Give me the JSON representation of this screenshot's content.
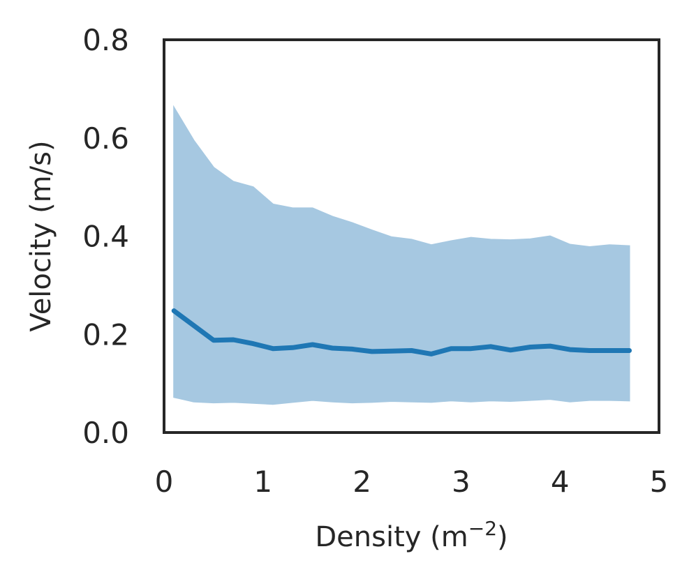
{
  "chart_data": {
    "type": "line",
    "xlabel": "Density (m",
    "xlabel_sup": "−2",
    "xlabel_close": ")",
    "ylabel": "Velocity (m/s)",
    "xlim": [
      0,
      5
    ],
    "ylim": [
      0,
      0.8
    ],
    "xticks": [
      0,
      1,
      2,
      3,
      4,
      5
    ],
    "xtick_labels": [
      "0",
      "1",
      "2",
      "3",
      "4",
      "5"
    ],
    "yticks": [
      0.0,
      0.2,
      0.4,
      0.6,
      0.8
    ],
    "ytick_labels": [
      "0.0",
      "0.2",
      "0.4",
      "0.6",
      "0.8"
    ],
    "grid": false,
    "colors": {
      "line": "#1f77b4",
      "band": "#a6c8e1",
      "axes": "#262626"
    },
    "x": [
      0.1,
      0.3,
      0.5,
      0.7,
      0.9,
      1.1,
      1.3,
      1.5,
      1.7,
      1.9,
      2.1,
      2.3,
      2.5,
      2.7,
      2.9,
      3.1,
      3.3,
      3.5,
      3.7,
      3.9,
      4.1,
      4.3,
      4.5,
      4.7
    ],
    "series": [
      {
        "values": [
          0.248,
          0.218,
          0.188,
          0.189,
          0.181,
          0.171,
          0.173,
          0.179,
          0.172,
          0.17,
          0.165,
          0.166,
          0.167,
          0.16,
          0.171,
          0.171,
          0.175,
          0.168,
          0.174,
          0.176,
          0.169,
          0.167,
          0.167,
          0.167
        ],
        "lower": [
          0.072,
          0.063,
          0.061,
          0.062,
          0.06,
          0.058,
          0.062,
          0.066,
          0.063,
          0.061,
          0.062,
          0.064,
          0.063,
          0.062,
          0.065,
          0.063,
          0.065,
          0.064,
          0.066,
          0.068,
          0.063,
          0.066,
          0.066,
          0.065
        ],
        "upper": [
          0.662,
          0.595,
          0.54,
          0.511,
          0.5,
          0.465,
          0.457,
          0.457,
          0.44,
          0.427,
          0.412,
          0.398,
          0.393,
          0.382,
          0.39,
          0.397,
          0.393,
          0.392,
          0.394,
          0.4,
          0.383,
          0.378,
          0.382,
          0.38
        ]
      }
    ]
  }
}
